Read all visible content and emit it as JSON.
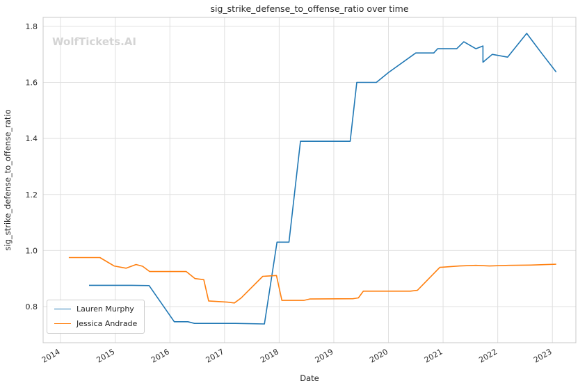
{
  "watermark": "WolfTickets.AI",
  "chart_data": {
    "type": "line",
    "title": "sig_strike_defense_to_offense_ratio over time",
    "xlabel": "Date",
    "ylabel": "sig_strike_defense_to_offense_ratio",
    "grid": true,
    "legend_position": "lower left",
    "xlim": [
      2013.68,
      2023.43
    ],
    "ylim": [
      0.671,
      1.832
    ],
    "x_ticks": [
      2014,
      2015,
      2016,
      2017,
      2018,
      2019,
      2020,
      2021,
      2022,
      2023
    ],
    "y_ticks": [
      0.8,
      1.0,
      1.2,
      1.4,
      1.6,
      1.8
    ],
    "series": [
      {
        "name": "Lauren Murphy",
        "color": "#1f77b4",
        "points": [
          [
            2014.52,
            0.876
          ],
          [
            2015.3,
            0.876
          ],
          [
            2015.62,
            0.875
          ],
          [
            2016.08,
            0.746
          ],
          [
            2016.33,
            0.746
          ],
          [
            2016.45,
            0.74
          ],
          [
            2017.2,
            0.74
          ],
          [
            2017.73,
            0.738
          ],
          [
            2017.96,
            1.03
          ],
          [
            2018.18,
            1.03
          ],
          [
            2018.39,
            1.39
          ],
          [
            2019.3,
            1.39
          ],
          [
            2019.42,
            1.6
          ],
          [
            2019.78,
            1.6
          ],
          [
            2020.0,
            1.635
          ],
          [
            2020.5,
            1.705
          ],
          [
            2020.83,
            1.705
          ],
          [
            2020.9,
            1.72
          ],
          [
            2021.25,
            1.72
          ],
          [
            2021.38,
            1.745
          ],
          [
            2021.6,
            1.72
          ],
          [
            2021.73,
            1.73
          ],
          [
            2021.73,
            1.672
          ],
          [
            2021.9,
            1.7
          ],
          [
            2022.18,
            1.69
          ],
          [
            2022.53,
            1.775
          ],
          [
            2022.8,
            1.705
          ],
          [
            2023.07,
            1.637
          ]
        ]
      },
      {
        "name": "Jessica Andrade",
        "color": "#ff7f0e",
        "points": [
          [
            2014.15,
            0.975
          ],
          [
            2014.72,
            0.975
          ],
          [
            2014.98,
            0.945
          ],
          [
            2015.2,
            0.937
          ],
          [
            2015.38,
            0.95
          ],
          [
            2015.5,
            0.944
          ],
          [
            2015.63,
            0.925
          ],
          [
            2016.3,
            0.925
          ],
          [
            2016.46,
            0.9
          ],
          [
            2016.62,
            0.896
          ],
          [
            2016.71,
            0.82
          ],
          [
            2017.05,
            0.816
          ],
          [
            2017.18,
            0.813
          ],
          [
            2017.3,
            0.83
          ],
          [
            2017.7,
            0.908
          ],
          [
            2017.95,
            0.911
          ],
          [
            2018.05,
            0.822
          ],
          [
            2018.45,
            0.822
          ],
          [
            2018.56,
            0.827
          ],
          [
            2019.35,
            0.828
          ],
          [
            2019.45,
            0.831
          ],
          [
            2019.54,
            0.855
          ],
          [
            2020.4,
            0.855
          ],
          [
            2020.53,
            0.858
          ],
          [
            2020.94,
            0.94
          ],
          [
            2021.3,
            0.945
          ],
          [
            2021.6,
            0.947
          ],
          [
            2021.85,
            0.945
          ],
          [
            2022.2,
            0.947
          ],
          [
            2022.6,
            0.948
          ],
          [
            2023.07,
            0.951
          ]
        ]
      }
    ]
  }
}
